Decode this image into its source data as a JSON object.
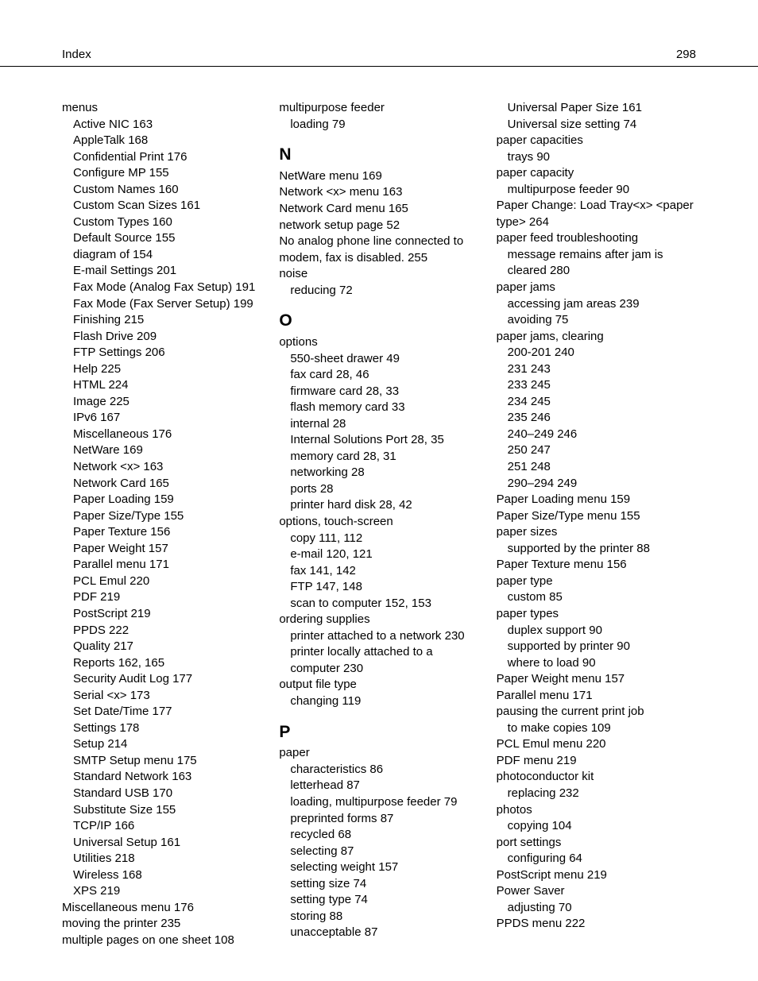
{
  "header": {
    "title": "Index",
    "page": "298"
  },
  "col1": [
    {
      "t": "menus",
      "cls": ""
    },
    {
      "t": "Active NIC  163",
      "cls": "sub1"
    },
    {
      "t": "AppleTalk  168",
      "cls": "sub1"
    },
    {
      "t": "Confidential Print  176",
      "cls": "sub1"
    },
    {
      "t": "Configure MP  155",
      "cls": "sub1"
    },
    {
      "t": "Custom Names  160",
      "cls": "sub1"
    },
    {
      "t": "Custom Scan Sizes  161",
      "cls": "sub1"
    },
    {
      "t": "Custom Types  160",
      "cls": "sub1"
    },
    {
      "t": "Default Source  155",
      "cls": "sub1"
    },
    {
      "t": "diagram of  154",
      "cls": "sub1"
    },
    {
      "t": "E‑mail Settings  201",
      "cls": "sub1"
    },
    {
      "t": "Fax Mode (Analog Fax Setup)  191",
      "cls": "sub1"
    },
    {
      "t": "Fax Mode (Fax Server Setup)  199",
      "cls": "sub1"
    },
    {
      "t": "Finishing  215",
      "cls": "sub1"
    },
    {
      "t": "Flash Drive  209",
      "cls": "sub1"
    },
    {
      "t": "FTP Settings  206",
      "cls": "sub1"
    },
    {
      "t": "Help  225",
      "cls": "sub1"
    },
    {
      "t": "HTML  224",
      "cls": "sub1"
    },
    {
      "t": "Image  225",
      "cls": "sub1"
    },
    {
      "t": "IPv6  167",
      "cls": "sub1"
    },
    {
      "t": "Miscellaneous  176",
      "cls": "sub1"
    },
    {
      "t": "NetWare  169",
      "cls": "sub1"
    },
    {
      "t": "Network <x>  163",
      "cls": "sub1"
    },
    {
      "t": "Network Card  165",
      "cls": "sub1"
    },
    {
      "t": "Paper Loading  159",
      "cls": "sub1"
    },
    {
      "t": "Paper Size/Type  155",
      "cls": "sub1"
    },
    {
      "t": "Paper Texture  156",
      "cls": "sub1"
    },
    {
      "t": "Paper Weight  157",
      "cls": "sub1"
    },
    {
      "t": "Parallel menu  171",
      "cls": "sub1"
    },
    {
      "t": "PCL Emul  220",
      "cls": "sub1"
    },
    {
      "t": "PDF  219",
      "cls": "sub1"
    },
    {
      "t": "PostScript  219",
      "cls": "sub1"
    },
    {
      "t": "PPDS  222",
      "cls": "sub1"
    },
    {
      "t": "Quality  217",
      "cls": "sub1"
    },
    {
      "t": "Reports  162, 165",
      "cls": "sub1"
    },
    {
      "t": "Security Audit Log  177",
      "cls": "sub1"
    },
    {
      "t": "Serial <x>  173",
      "cls": "sub1"
    },
    {
      "t": "Set Date/Time  177",
      "cls": "sub1"
    },
    {
      "t": "Settings  178",
      "cls": "sub1"
    },
    {
      "t": "Setup  214",
      "cls": "sub1"
    },
    {
      "t": "SMTP Setup menu  175",
      "cls": "sub1"
    },
    {
      "t": "Standard Network  163",
      "cls": "sub1"
    },
    {
      "t": "Standard USB  170",
      "cls": "sub1"
    },
    {
      "t": "Substitute Size  155",
      "cls": "sub1"
    },
    {
      "t": "TCP/IP  166",
      "cls": "sub1"
    },
    {
      "t": "Universal Setup  161",
      "cls": "sub1"
    },
    {
      "t": "Utilities  218",
      "cls": "sub1"
    },
    {
      "t": "Wireless  168",
      "cls": "sub1"
    },
    {
      "t": "XPS  219",
      "cls": "sub1"
    },
    {
      "t": "Miscellaneous menu  176",
      "cls": ""
    },
    {
      "t": "moving the printer  235",
      "cls": ""
    },
    {
      "t": "multiple pages on one sheet  108",
      "cls": ""
    }
  ],
  "col2": [
    {
      "t": "multipurpose feeder",
      "cls": ""
    },
    {
      "t": "loading  79",
      "cls": "sub1"
    },
    {
      "t": "N",
      "cls": "section-letter"
    },
    {
      "t": "NetWare menu  169",
      "cls": ""
    },
    {
      "t": "Network <x> menu  163",
      "cls": ""
    },
    {
      "t": "Network Card menu  165",
      "cls": ""
    },
    {
      "t": "network setup page  52",
      "cls": ""
    },
    {
      "t": "No analog phone line connected to modem, fax is disabled.  255",
      "cls": "wrap"
    },
    {
      "t": "noise",
      "cls": ""
    },
    {
      "t": "reducing  72",
      "cls": "sub1"
    },
    {
      "t": "O",
      "cls": "section-letter"
    },
    {
      "t": "options",
      "cls": ""
    },
    {
      "t": "550‑sheet drawer  49",
      "cls": "sub1"
    },
    {
      "t": "fax card  28, 46",
      "cls": "sub1"
    },
    {
      "t": "firmware card  28, 33",
      "cls": "sub1"
    },
    {
      "t": "flash memory card  33",
      "cls": "sub1"
    },
    {
      "t": "internal  28",
      "cls": "sub1"
    },
    {
      "t": "Internal Solutions Port  28, 35",
      "cls": "sub1"
    },
    {
      "t": "memory card  28, 31",
      "cls": "sub1"
    },
    {
      "t": "networking  28",
      "cls": "sub1"
    },
    {
      "t": "ports  28",
      "cls": "sub1"
    },
    {
      "t": "printer hard disk  28, 42",
      "cls": "sub1"
    },
    {
      "t": "options, touch‑screen",
      "cls": ""
    },
    {
      "t": "copy  111, 112",
      "cls": "sub1"
    },
    {
      "t": "e‑mail  120, 121",
      "cls": "sub1"
    },
    {
      "t": "fax  141, 142",
      "cls": "sub1"
    },
    {
      "t": "FTP  147, 148",
      "cls": "sub1"
    },
    {
      "t": "scan to computer  152, 153",
      "cls": "sub1"
    },
    {
      "t": "ordering supplies",
      "cls": ""
    },
    {
      "t": "printer attached to a network  230",
      "cls": "sub1"
    },
    {
      "t": "printer locally attached to a computer  230",
      "cls": "sub1 wrap"
    },
    {
      "t": "output file type",
      "cls": ""
    },
    {
      "t": "changing  119",
      "cls": "sub1"
    },
    {
      "t": "P",
      "cls": "section-letter"
    },
    {
      "t": "paper",
      "cls": ""
    },
    {
      "t": "characteristics  86",
      "cls": "sub1"
    },
    {
      "t": "letterhead  87",
      "cls": "sub1"
    },
    {
      "t": "loading, multipurpose feeder  79",
      "cls": "sub1"
    },
    {
      "t": "preprinted forms  87",
      "cls": "sub1"
    },
    {
      "t": "recycled  68",
      "cls": "sub1"
    },
    {
      "t": "selecting  87",
      "cls": "sub1"
    },
    {
      "t": "selecting weight  157",
      "cls": "sub1"
    },
    {
      "t": "setting size  74",
      "cls": "sub1"
    },
    {
      "t": "setting type  74",
      "cls": "sub1"
    },
    {
      "t": "storing  88",
      "cls": "sub1"
    },
    {
      "t": "unacceptable  87",
      "cls": "sub1"
    }
  ],
  "col3": [
    {
      "t": "Universal Paper Size  161",
      "cls": "sub1"
    },
    {
      "t": "Universal size setting  74",
      "cls": "sub1"
    },
    {
      "t": "paper capacities",
      "cls": ""
    },
    {
      "t": "trays  90",
      "cls": "sub1"
    },
    {
      "t": "paper capacity",
      "cls": ""
    },
    {
      "t": "multipurpose feeder  90",
      "cls": "sub1"
    },
    {
      "t": "Paper Change: Load Tray<x> <paper type>  264",
      "cls": "wrap"
    },
    {
      "t": "paper feed troubleshooting",
      "cls": ""
    },
    {
      "t": "message remains after jam is cleared  280",
      "cls": "sub1 wrap"
    },
    {
      "t": "paper jams",
      "cls": ""
    },
    {
      "t": "accessing jam areas  239",
      "cls": "sub1"
    },
    {
      "t": "avoiding  75",
      "cls": "sub1"
    },
    {
      "t": "paper jams, clearing",
      "cls": ""
    },
    {
      "t": "200‑201  240",
      "cls": "sub1"
    },
    {
      "t": "231  243",
      "cls": "sub1"
    },
    {
      "t": "233  245",
      "cls": "sub1"
    },
    {
      "t": "234  245",
      "cls": "sub1"
    },
    {
      "t": "235  246",
      "cls": "sub1"
    },
    {
      "t": "240–249  246",
      "cls": "sub1"
    },
    {
      "t": "250  247",
      "cls": "sub1"
    },
    {
      "t": "251  248",
      "cls": "sub1"
    },
    {
      "t": "290–294  249",
      "cls": "sub1"
    },
    {
      "t": "Paper Loading menu  159",
      "cls": ""
    },
    {
      "t": "Paper Size/Type menu  155",
      "cls": ""
    },
    {
      "t": "paper sizes",
      "cls": ""
    },
    {
      "t": "supported by the printer  88",
      "cls": "sub1"
    },
    {
      "t": "Paper Texture menu  156",
      "cls": ""
    },
    {
      "t": "paper type",
      "cls": ""
    },
    {
      "t": "custom  85",
      "cls": "sub1"
    },
    {
      "t": "paper types",
      "cls": ""
    },
    {
      "t": "duplex support  90",
      "cls": "sub1"
    },
    {
      "t": "supported by printer  90",
      "cls": "sub1"
    },
    {
      "t": "where to load  90",
      "cls": "sub1"
    },
    {
      "t": "Paper Weight menu  157",
      "cls": ""
    },
    {
      "t": "Parallel menu  171",
      "cls": ""
    },
    {
      "t": "pausing the current print job",
      "cls": ""
    },
    {
      "t": "to make copies  109",
      "cls": "sub1"
    },
    {
      "t": "PCL Emul menu  220",
      "cls": ""
    },
    {
      "t": "PDF menu  219",
      "cls": ""
    },
    {
      "t": "photoconductor kit",
      "cls": ""
    },
    {
      "t": "replacing  232",
      "cls": "sub1"
    },
    {
      "t": "photos",
      "cls": ""
    },
    {
      "t": "copying  104",
      "cls": "sub1"
    },
    {
      "t": "port settings",
      "cls": ""
    },
    {
      "t": "configuring  64",
      "cls": "sub1"
    },
    {
      "t": "PostScript menu  219",
      "cls": ""
    },
    {
      "t": "Power Saver",
      "cls": ""
    },
    {
      "t": "adjusting  70",
      "cls": "sub1"
    },
    {
      "t": "PPDS menu  222",
      "cls": ""
    }
  ]
}
